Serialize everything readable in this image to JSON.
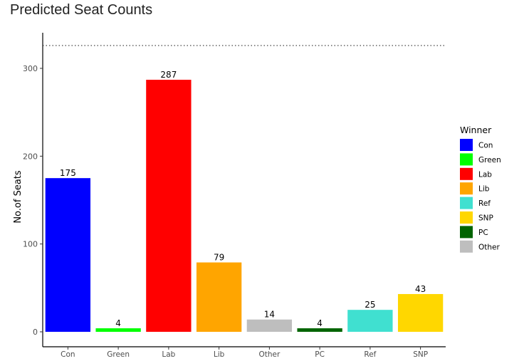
{
  "chart_data": {
    "type": "bar",
    "title": "Predicted Seat Counts",
    "xlabel": "",
    "ylabel": "No.of Seats",
    "categories": [
      "Con",
      "Green",
      "Lab",
      "Lib",
      "Other",
      "PC",
      "Ref",
      "SNP"
    ],
    "values": [
      175,
      4,
      287,
      79,
      14,
      4,
      25,
      43
    ],
    "data_labels": [
      "175",
      "4",
      "287",
      "79",
      "14",
      "4",
      "25",
      "43"
    ],
    "bar_colors": [
      "#0000ff",
      "#00ff00",
      "#ff0000",
      "#ffa500",
      "#bebebe",
      "#006400",
      "#40e0d0",
      "#ffd700"
    ],
    "ylim": [
      0,
      335
    ],
    "yticks": [
      0,
      100,
      200,
      300
    ],
    "ytick_labels": [
      "0",
      "100",
      "200",
      "300"
    ],
    "reference_line": {
      "value": 326,
      "style": "dotted"
    },
    "grid": false,
    "legend": {
      "title": "Winner",
      "placement": "right",
      "entries": [
        {
          "label": "Con",
          "color": "#0000ff"
        },
        {
          "label": "Green",
          "color": "#00ff00"
        },
        {
          "label": "Lab",
          "color": "#ff0000"
        },
        {
          "label": "Lib",
          "color": "#ffa500"
        },
        {
          "label": "Ref",
          "color": "#40e0d0"
        },
        {
          "label": "SNP",
          "color": "#ffd700"
        },
        {
          "label": "PC",
          "color": "#006400"
        },
        {
          "label": "Other",
          "color": "#bebebe"
        }
      ]
    }
  }
}
